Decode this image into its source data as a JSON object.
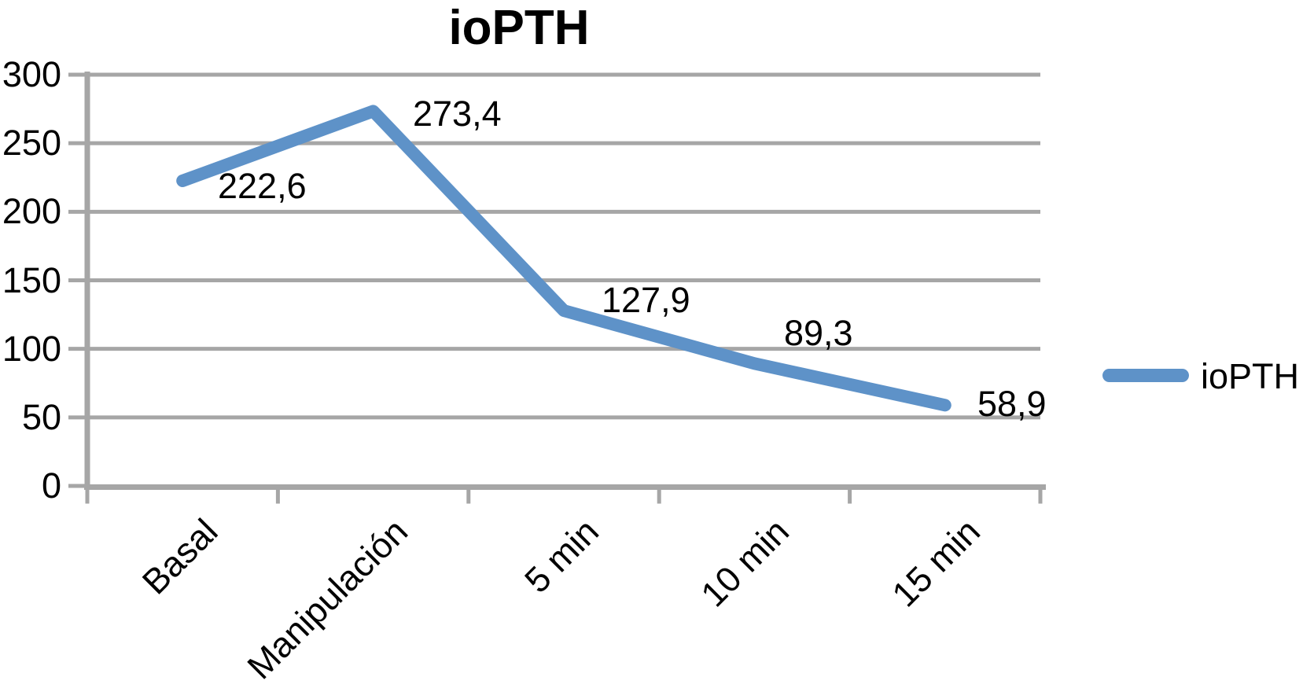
{
  "chart_data": {
    "type": "line",
    "title": "ioPTH",
    "categories": [
      "Basal",
      "Manipulación",
      "5 min",
      "10 min",
      "15 min"
    ],
    "series": [
      {
        "name": "ioPTH",
        "values": [
          222.6,
          273.4,
          127.9,
          89.3,
          58.9
        ]
      }
    ],
    "data_labels": [
      "222,6",
      "273,4",
      "127,9",
      "89,3",
      "58,9"
    ],
    "y_ticks": [
      0,
      50,
      100,
      150,
      200,
      250,
      300
    ],
    "y_tick_labels": [
      "0",
      "50",
      "100",
      "150",
      "200",
      "250",
      "300"
    ],
    "ylim": [
      0,
      300
    ],
    "xlabel": "",
    "ylabel": "",
    "grid": true,
    "legend_position": "right",
    "legend_label": "ioPTH",
    "colors": {
      "line": "#5E92C8",
      "grid": "#A6A6A6",
      "axis": "#A6A6A6",
      "text": "#000000",
      "background": "#FFFFFF"
    }
  }
}
